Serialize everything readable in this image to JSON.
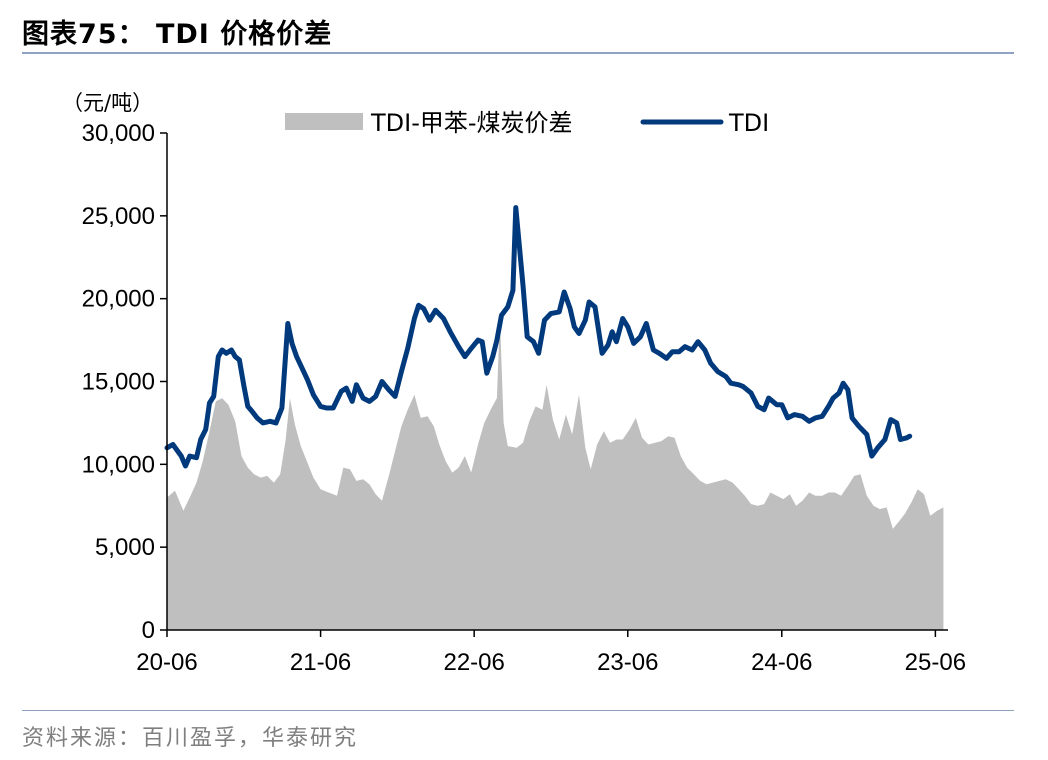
{
  "figure": {
    "title": "图表75： TDI 价格价差",
    "source": "资料来源：百川盈孚，华泰研究"
  },
  "chart_data": {
    "type": "area",
    "unit_label": "（元/吨）",
    "ylim": [
      0,
      30000
    ],
    "yticks": [
      0,
      5000,
      10000,
      15000,
      20000,
      25000,
      30000
    ],
    "ytick_labels": [
      "0",
      "5,000",
      "10,000",
      "15,000",
      "20,000",
      "25,000",
      "30,000"
    ],
    "xlim": [
      "2020-06",
      "2025-07"
    ],
    "xticks": [
      "2020-06",
      "2021-06",
      "2022-06",
      "2023-06",
      "2024-06",
      "2025-06"
    ],
    "xtick_labels": [
      "20-06",
      "21-06",
      "22-06",
      "23-06",
      "24-06",
      "25-06"
    ],
    "legend_position": "top",
    "grid": false,
    "series": [
      {
        "name": "TDI-甲苯-煤炭价差",
        "type": "area",
        "color": "#bfbfbf",
        "points": [
          [
            "2020-06-01",
            8000
          ],
          [
            "2020-06-20",
            8400
          ],
          [
            "2020-07-10",
            7200
          ],
          [
            "2020-07-25",
            8000
          ],
          [
            "2020-08-10",
            8900
          ],
          [
            "2020-08-25",
            10200
          ],
          [
            "2020-09-10",
            12000
          ],
          [
            "2020-09-25",
            13800
          ],
          [
            "2020-10-10",
            14000
          ],
          [
            "2020-10-25",
            13600
          ],
          [
            "2020-11-10",
            12600
          ],
          [
            "2020-11-25",
            10500
          ],
          [
            "2020-12-10",
            9800
          ],
          [
            "2020-12-25",
            9400
          ],
          [
            "2021-01-10",
            9200
          ],
          [
            "2021-01-25",
            9300
          ],
          [
            "2021-02-10",
            8900
          ],
          [
            "2021-02-25",
            9400
          ],
          [
            "2021-03-10",
            11500
          ],
          [
            "2021-03-20",
            14000
          ],
          [
            "2021-04-01",
            12400
          ],
          [
            "2021-04-15",
            11100
          ],
          [
            "2021-05-01",
            10100
          ],
          [
            "2021-05-15",
            9200
          ],
          [
            "2021-06-01",
            8500
          ],
          [
            "2021-06-20",
            8300
          ],
          [
            "2021-07-10",
            8100
          ],
          [
            "2021-07-25",
            9800
          ],
          [
            "2021-08-10",
            9700
          ],
          [
            "2021-08-25",
            9000
          ],
          [
            "2021-09-10",
            9100
          ],
          [
            "2021-09-25",
            8800
          ],
          [
            "2021-10-10",
            8200
          ],
          [
            "2021-10-25",
            7800
          ],
          [
            "2021-11-10",
            9300
          ],
          [
            "2021-11-25",
            10800
          ],
          [
            "2021-12-10",
            12300
          ],
          [
            "2021-12-25",
            13300
          ],
          [
            "2022-01-10",
            14200
          ],
          [
            "2022-01-25",
            12800
          ],
          [
            "2022-02-10",
            12900
          ],
          [
            "2022-02-25",
            12300
          ],
          [
            "2022-03-10",
            11200
          ],
          [
            "2022-03-25",
            10200
          ],
          [
            "2022-04-10",
            9500
          ],
          [
            "2022-04-25",
            9800
          ],
          [
            "2022-05-10",
            10500
          ],
          [
            "2022-05-25",
            9500
          ],
          [
            "2022-06-10",
            11200
          ],
          [
            "2022-06-25",
            12500
          ],
          [
            "2022-07-10",
            13300
          ],
          [
            "2022-07-25",
            14000
          ],
          [
            "2022-08-01",
            18900
          ],
          [
            "2022-08-10",
            12500
          ],
          [
            "2022-08-20",
            11100
          ],
          [
            "2022-09-10",
            11000
          ],
          [
            "2022-09-25",
            11300
          ],
          [
            "2022-10-10",
            12600
          ],
          [
            "2022-10-25",
            13500
          ],
          [
            "2022-11-10",
            13300
          ],
          [
            "2022-11-20",
            14800
          ],
          [
            "2022-12-05",
            12700
          ],
          [
            "2022-12-20",
            11500
          ],
          [
            "2023-01-05",
            13000
          ],
          [
            "2023-01-20",
            11800
          ],
          [
            "2023-02-05",
            14200
          ],
          [
            "2023-02-20",
            11000
          ],
          [
            "2023-03-05",
            9700
          ],
          [
            "2023-03-20",
            11200
          ],
          [
            "2023-04-05",
            12000
          ],
          [
            "2023-04-20",
            11300
          ],
          [
            "2023-05-05",
            11500
          ],
          [
            "2023-05-20",
            11500
          ],
          [
            "2023-06-05",
            12100
          ],
          [
            "2023-06-20",
            12800
          ],
          [
            "2023-07-05",
            11600
          ],
          [
            "2023-07-20",
            11200
          ],
          [
            "2023-08-05",
            11300
          ],
          [
            "2023-08-20",
            11400
          ],
          [
            "2023-09-05",
            11700
          ],
          [
            "2023-09-20",
            11600
          ],
          [
            "2023-10-05",
            10500
          ],
          [
            "2023-10-20",
            9800
          ],
          [
            "2023-11-05",
            9400
          ],
          [
            "2023-11-20",
            9000
          ],
          [
            "2023-12-05",
            8800
          ],
          [
            "2023-12-20",
            8900
          ],
          [
            "2024-01-05",
            9000
          ],
          [
            "2024-01-20",
            9100
          ],
          [
            "2024-02-05",
            8900
          ],
          [
            "2024-02-20",
            8500
          ],
          [
            "2024-03-05",
            8100
          ],
          [
            "2024-03-20",
            7600
          ],
          [
            "2024-04-05",
            7500
          ],
          [
            "2024-04-20",
            7600
          ],
          [
            "2024-05-05",
            8300
          ],
          [
            "2024-05-20",
            8100
          ],
          [
            "2024-06-05",
            7900
          ],
          [
            "2024-06-20",
            8200
          ],
          [
            "2024-07-05",
            7500
          ],
          [
            "2024-07-20",
            7800
          ],
          [
            "2024-08-05",
            8300
          ],
          [
            "2024-08-20",
            8100
          ],
          [
            "2024-09-05",
            8100
          ],
          [
            "2024-09-20",
            8300
          ],
          [
            "2024-10-05",
            8300
          ],
          [
            "2024-10-20",
            8100
          ],
          [
            "2024-11-05",
            8700
          ],
          [
            "2024-11-20",
            9300
          ],
          [
            "2024-12-05",
            9400
          ],
          [
            "2024-12-20",
            8100
          ],
          [
            "2025-01-05",
            7500
          ],
          [
            "2025-01-20",
            7300
          ],
          [
            "2025-02-05",
            7400
          ],
          [
            "2025-02-20",
            6100
          ],
          [
            "2025-03-05",
            6500
          ],
          [
            "2025-03-20",
            7000
          ],
          [
            "2025-04-05",
            7700
          ],
          [
            "2025-04-20",
            8500
          ],
          [
            "2025-05-05",
            8200
          ],
          [
            "2025-05-20",
            6900
          ],
          [
            "2025-06-05",
            7200
          ],
          [
            "2025-06-20",
            7400
          ]
        ]
      },
      {
        "name": "TDI",
        "type": "line",
        "color": "#003a7d",
        "points": [
          [
            "2020-06-01",
            11000
          ],
          [
            "2020-06-15",
            11200
          ],
          [
            "2020-07-05",
            10500
          ],
          [
            "2020-07-15",
            9900
          ],
          [
            "2020-07-25",
            10500
          ],
          [
            "2020-08-10",
            10400
          ],
          [
            "2020-08-20",
            11500
          ],
          [
            "2020-09-01",
            12100
          ],
          [
            "2020-09-10",
            13700
          ],
          [
            "2020-09-20",
            14100
          ],
          [
            "2020-10-01",
            16500
          ],
          [
            "2020-10-10",
            16900
          ],
          [
            "2020-10-20",
            16700
          ],
          [
            "2020-11-01",
            16900
          ],
          [
            "2020-11-10",
            16500
          ],
          [
            "2020-11-20",
            16300
          ],
          [
            "2020-12-01",
            14700
          ],
          [
            "2020-12-10",
            13500
          ],
          [
            "2020-12-20",
            13200
          ],
          [
            "2021-01-01",
            12800
          ],
          [
            "2021-01-15",
            12500
          ],
          [
            "2021-02-01",
            12600
          ],
          [
            "2021-02-15",
            12500
          ],
          [
            "2021-03-01",
            13400
          ],
          [
            "2021-03-15",
            18500
          ],
          [
            "2021-03-25",
            17300
          ],
          [
            "2021-04-05",
            16500
          ],
          [
            "2021-04-20",
            15700
          ],
          [
            "2021-05-01",
            15100
          ],
          [
            "2021-05-15",
            14200
          ],
          [
            "2021-06-01",
            13500
          ],
          [
            "2021-06-15",
            13400
          ],
          [
            "2021-07-01",
            13400
          ],
          [
            "2021-07-20",
            14400
          ],
          [
            "2021-08-01",
            14600
          ],
          [
            "2021-08-15",
            13800
          ],
          [
            "2021-08-25",
            14800
          ],
          [
            "2021-09-10",
            14000
          ],
          [
            "2021-09-25",
            13800
          ],
          [
            "2021-10-10",
            14100
          ],
          [
            "2021-10-25",
            15000
          ],
          [
            "2021-11-10",
            14500
          ],
          [
            "2021-11-25",
            14100
          ],
          [
            "2021-12-10",
            15600
          ],
          [
            "2021-12-25",
            17000
          ],
          [
            "2022-01-10",
            18800
          ],
          [
            "2022-01-20",
            19600
          ],
          [
            "2022-02-01",
            19400
          ],
          [
            "2022-02-15",
            18700
          ],
          [
            "2022-03-01",
            19300
          ],
          [
            "2022-03-20",
            18800
          ],
          [
            "2022-04-05",
            18000
          ],
          [
            "2022-04-25",
            17100
          ],
          [
            "2022-05-10",
            16500
          ],
          [
            "2022-05-25",
            17000
          ],
          [
            "2022-06-10",
            17500
          ],
          [
            "2022-06-20",
            17400
          ],
          [
            "2022-07-01",
            15500
          ],
          [
            "2022-07-15",
            16500
          ],
          [
            "2022-07-25",
            17500
          ],
          [
            "2022-08-05",
            19000
          ],
          [
            "2022-08-20",
            19500
          ],
          [
            "2022-09-01",
            20500
          ],
          [
            "2022-09-08",
            25500
          ],
          [
            "2022-09-25",
            20800
          ],
          [
            "2022-10-05",
            17700
          ],
          [
            "2022-10-20",
            17400
          ],
          [
            "2022-11-01",
            16700
          ],
          [
            "2022-11-15",
            18700
          ],
          [
            "2022-11-30",
            19100
          ],
          [
            "2022-12-20",
            19200
          ],
          [
            "2023-01-01",
            20400
          ],
          [
            "2023-01-15",
            19400
          ],
          [
            "2023-01-25",
            18300
          ],
          [
            "2023-02-05",
            17900
          ],
          [
            "2023-02-20",
            18700
          ],
          [
            "2023-03-01",
            19800
          ],
          [
            "2023-03-15",
            19500
          ],
          [
            "2023-04-01",
            16700
          ],
          [
            "2023-04-15",
            17200
          ],
          [
            "2023-04-25",
            18000
          ],
          [
            "2023-05-05",
            17400
          ],
          [
            "2023-05-20",
            18800
          ],
          [
            "2023-06-01",
            18300
          ],
          [
            "2023-06-15",
            17300
          ],
          [
            "2023-07-01",
            17700
          ],
          [
            "2023-07-15",
            18500
          ],
          [
            "2023-08-01",
            16900
          ],
          [
            "2023-08-15",
            16700
          ],
          [
            "2023-09-01",
            16400
          ],
          [
            "2023-09-15",
            16800
          ],
          [
            "2023-10-01",
            16800
          ],
          [
            "2023-10-15",
            17100
          ],
          [
            "2023-11-01",
            16900
          ],
          [
            "2023-11-15",
            17400
          ],
          [
            "2023-12-01",
            16900
          ],
          [
            "2023-12-15",
            16100
          ],
          [
            "2024-01-01",
            15600
          ],
          [
            "2024-01-20",
            15300
          ],
          [
            "2024-02-01",
            14900
          ],
          [
            "2024-02-20",
            14800
          ],
          [
            "2024-03-01",
            14700
          ],
          [
            "2024-03-20",
            14300
          ],
          [
            "2024-04-05",
            13500
          ],
          [
            "2024-04-20",
            13300
          ],
          [
            "2024-05-01",
            14000
          ],
          [
            "2024-05-20",
            13600
          ],
          [
            "2024-06-01",
            13600
          ],
          [
            "2024-06-15",
            12800
          ],
          [
            "2024-07-01",
            13000
          ],
          [
            "2024-07-20",
            12900
          ],
          [
            "2024-08-05",
            12600
          ],
          [
            "2024-08-20",
            12800
          ],
          [
            "2024-09-05",
            12900
          ],
          [
            "2024-09-20",
            13500
          ],
          [
            "2024-10-01",
            14000
          ],
          [
            "2024-10-15",
            14300
          ],
          [
            "2024-10-25",
            14900
          ],
          [
            "2024-11-05",
            14500
          ],
          [
            "2024-11-15",
            12800
          ],
          [
            "2024-12-01",
            12300
          ],
          [
            "2024-12-20",
            11800
          ],
          [
            "2025-01-01",
            10500
          ],
          [
            "2025-01-15",
            11000
          ],
          [
            "2025-02-01",
            11500
          ],
          [
            "2025-02-15",
            12700
          ],
          [
            "2025-03-01",
            12500
          ],
          [
            "2025-03-10",
            11500
          ],
          [
            "2025-03-25",
            11600
          ],
          [
            "2025-04-01",
            11700
          ]
        ]
      }
    ]
  }
}
